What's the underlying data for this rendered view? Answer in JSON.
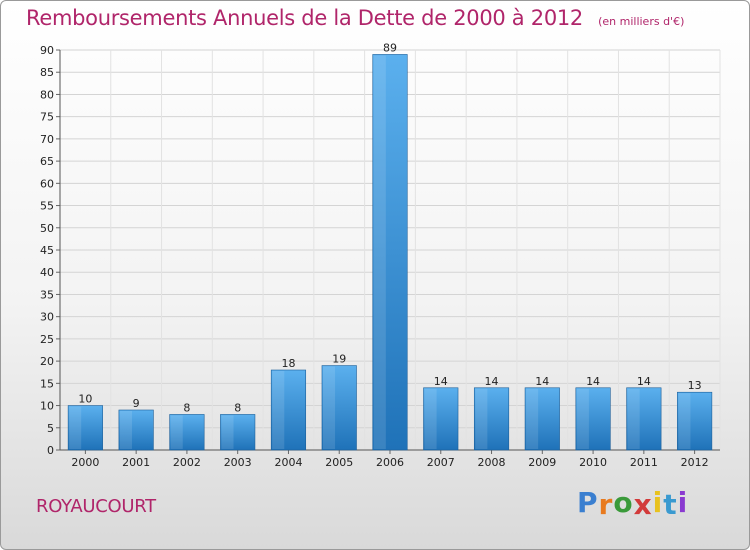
{
  "chart_data": {
    "type": "bar",
    "title": "Remboursements Annuels de la Dette de 2000 à 2012",
    "subtitle": "(en milliers d'€)",
    "xlabel": "",
    "ylabel": "",
    "categories": [
      "2000",
      "2001",
      "2002",
      "2003",
      "2004",
      "2005",
      "2006",
      "2007",
      "2008",
      "2009",
      "2010",
      "2011",
      "2012"
    ],
    "values": [
      10,
      9,
      8,
      8,
      18,
      19,
      89,
      14,
      14,
      14,
      14,
      14,
      13
    ],
    "ylim": [
      0,
      90
    ],
    "yticks": [
      0,
      5,
      10,
      15,
      20,
      25,
      30,
      35,
      40,
      45,
      50,
      55,
      60,
      65,
      70,
      75,
      80,
      85,
      90
    ],
    "grid": true,
    "bar_color": "#4a9fe0",
    "bar_color_dark": "#1f6fb5"
  },
  "footer": {
    "commune": "ROYAUCOURT",
    "logo_letters": [
      "P",
      "r",
      "o",
      "x",
      "i",
      "t",
      "i"
    ],
    "logo_colors": [
      "#3a7fd0",
      "#e87a1e",
      "#3a9a3a",
      "#d23a3a",
      "#e8c21e",
      "#3a9ad0",
      "#8a3ad0"
    ]
  }
}
